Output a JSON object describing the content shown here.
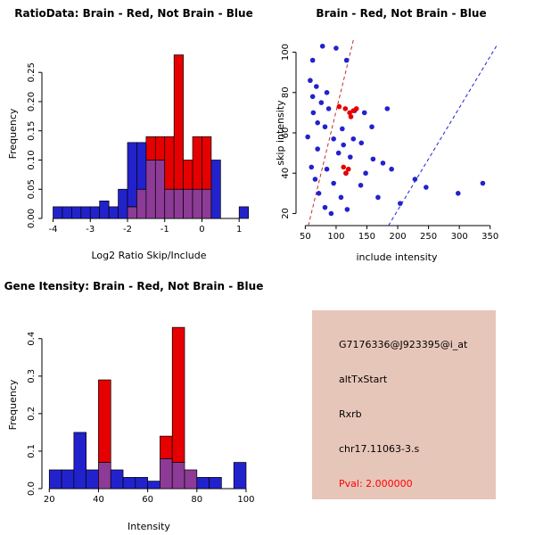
{
  "chart_data": [
    {
      "id": "ratio_hist",
      "type": "bar",
      "title": "RatioData: Brain - Red, Not Brain - Blue",
      "xlabel": "Log2 Ratio Skip/Include",
      "ylabel": "Frequency",
      "bin_start": -4.0,
      "bin_width": 0.25,
      "series": [
        {
          "name": "Not Brain",
          "color": "#2222CC",
          "values": [
            0.02,
            0.02,
            0.02,
            0.02,
            0.02,
            0.03,
            0.02,
            0.05,
            0.13,
            0.13,
            0.1,
            0.1,
            0.05,
            0.05,
            0.05,
            0.05,
            0.05,
            0.1,
            0,
            0,
            0.02
          ]
        },
        {
          "name": "Brain",
          "color": "#E60000",
          "values": [
            0,
            0,
            0,
            0,
            0,
            0,
            0,
            0,
            0.02,
            0.05,
            0.14,
            0.14,
            0.14,
            0.28,
            0.1,
            0.14,
            0.14,
            0,
            0,
            0,
            0
          ]
        }
      ],
      "overlap_color": "#8D3B96",
      "xlim": [
        -4.3,
        1.45
      ],
      "ylim": [
        0,
        0.29
      ],
      "xticks": [
        -4,
        -3,
        -2,
        -1,
        0,
        1
      ],
      "xtick_labels": [
        "-4",
        "-3",
        "-2",
        "-1",
        "0",
        "1"
      ],
      "yticks": [
        0,
        0.05,
        0.1,
        0.15,
        0.2,
        0.25
      ],
      "ytick_labels": [
        "0.00",
        "0.05",
        "0.10",
        "0.15",
        "0.20",
        "0.25"
      ],
      "grid": false,
      "legend": "none"
    },
    {
      "id": "scatter",
      "type": "scatter",
      "title": "Brain - Red, Not Brain - Blue",
      "xlabel": "include intensity",
      "ylabel": "skip intensity",
      "xlim": [
        35,
        362
      ],
      "ylim": [
        14,
        106
      ],
      "xticks": [
        50,
        100,
        150,
        200,
        250,
        300,
        350
      ],
      "xtick_labels": [
        "50",
        "100",
        "150",
        "200",
        "250",
        "300",
        "350"
      ],
      "yticks": [
        20,
        40,
        60,
        80,
        100
      ],
      "ytick_labels": [
        "20",
        "40",
        "60",
        "80",
        "100"
      ],
      "series": [
        {
          "name": "Not Brain",
          "color": "#2222CC",
          "points": [
            [
              62,
              96
            ],
            [
              78,
              103
            ],
            [
              100,
              102
            ],
            [
              117,
              96
            ],
            [
              58,
              86
            ],
            [
              68,
              83
            ],
            [
              85,
              80
            ],
            [
              62,
              78
            ],
            [
              76,
              75
            ],
            [
              88,
              72
            ],
            [
              130,
              71
            ],
            [
              146,
              70
            ],
            [
              183,
              72
            ],
            [
              63,
              70
            ],
            [
              70,
              65
            ],
            [
              82,
              63
            ],
            [
              110,
              62
            ],
            [
              158,
              63
            ],
            [
              54,
              58
            ],
            [
              96,
              57
            ],
            [
              128,
              57
            ],
            [
              141,
              55
            ],
            [
              112,
              54
            ],
            [
              70,
              52
            ],
            [
              104,
              50
            ],
            [
              123,
              48
            ],
            [
              160,
              47
            ],
            [
              176,
              45
            ],
            [
              60,
              43
            ],
            [
              85,
              42
            ],
            [
              116,
              40
            ],
            [
              148,
              40
            ],
            [
              190,
              42
            ],
            [
              66,
              37
            ],
            [
              96,
              35
            ],
            [
              140,
              34
            ],
            [
              228,
              37
            ],
            [
              246,
              33
            ],
            [
              72,
              30
            ],
            [
              108,
              28
            ],
            [
              168,
              28
            ],
            [
              204,
              25
            ],
            [
              298,
              30
            ],
            [
              338,
              35
            ],
            [
              82,
              23
            ],
            [
              118,
              22
            ],
            [
              92,
              20
            ]
          ]
        },
        {
          "name": "Brain",
          "color": "#E60000",
          "points": [
            [
              105,
              73
            ],
            [
              115,
              72
            ],
            [
              122,
              70
            ],
            [
              128,
              71
            ],
            [
              133,
              72
            ],
            [
              124,
              68
            ],
            [
              112,
              43
            ],
            [
              120,
              42
            ],
            [
              116,
              40
            ]
          ]
        }
      ],
      "lines": [
        {
          "name": "brain-fit",
          "color": "#C03030",
          "x1": 55,
          "y1": 14,
          "x2": 128,
          "y2": 106
        },
        {
          "name": "notbrain-fit",
          "color": "#2222CC",
          "x1": 185,
          "y1": 14,
          "x2": 362,
          "y2": 104
        }
      ],
      "grid": false,
      "legend": "none"
    },
    {
      "id": "gene_hist",
      "type": "bar",
      "title": "Gene Itensity: Brain - Red, Not Brain - Blue",
      "xlabel": "Intensity",
      "ylabel": "Frequency",
      "bin_start": 20,
      "bin_width": 5,
      "series": [
        {
          "name": "Not Brain",
          "color": "#2222CC",
          "values": [
            0.05,
            0.05,
            0.15,
            0.05,
            0.07,
            0.05,
            0.03,
            0.03,
            0.02,
            0.08,
            0.07,
            0.05,
            0.03,
            0.03,
            0,
            0.07
          ]
        },
        {
          "name": "Brain",
          "color": "#E60000",
          "values": [
            0,
            0,
            0,
            0,
            0.29,
            0,
            0,
            0,
            0,
            0.14,
            0.43,
            0.05,
            0,
            0,
            0,
            0
          ]
        }
      ],
      "overlap_color": "#8D3B96",
      "xlim": [
        17,
        104
      ],
      "ylim": [
        0,
        0.447
      ],
      "xticks": [
        20,
        40,
        60,
        80,
        100
      ],
      "xtick_labels": [
        "20",
        "40",
        "60",
        "80",
        "100"
      ],
      "yticks": [
        0,
        0.1,
        0.2,
        0.3,
        0.4
      ],
      "ytick_labels": [
        "0.0",
        "0.1",
        "0.2",
        "0.3",
        "0.4"
      ],
      "grid": false,
      "legend": "none"
    }
  ],
  "info_box": {
    "bg_color": "#E7C6BA",
    "lines": [
      {
        "text": "G7176336@J923395@i_at",
        "color": "#000000"
      },
      {
        "text": "altTxStart",
        "color": "#000000"
      },
      {
        "text": "Rxrb",
        "color": "#000000"
      },
      {
        "text": "chr17.11063-3.s",
        "color": "#000000"
      },
      {
        "text": "Pval: 2.000000",
        "color": "#FF0000"
      }
    ]
  }
}
